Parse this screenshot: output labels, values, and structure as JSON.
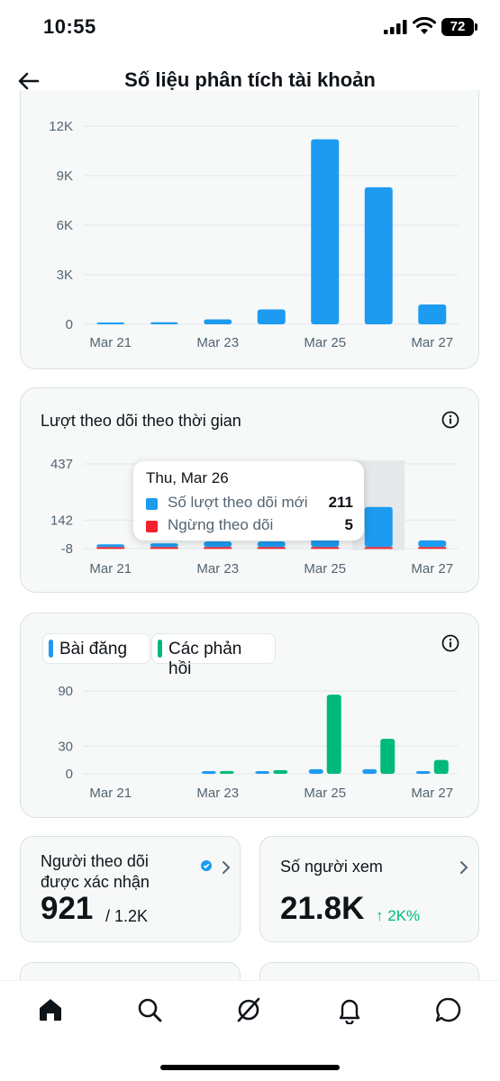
{
  "status_bar": {
    "time": "10:55",
    "battery": "72"
  },
  "header": {
    "title": "Số liệu phân tích tài khoản",
    "back_icon": "arrow-left-icon"
  },
  "colors": {
    "blue": "#1d9bf0",
    "red": "#f4212e",
    "green": "#00ba7c",
    "grid": "#e1e8ed",
    "muted": "#536471"
  },
  "chart_data": [
    {
      "type": "bar",
      "title": "",
      "categories": [
        "Mar 21",
        "Mar 22",
        "Mar 23",
        "Mar 24",
        "Mar 25",
        "Mar 26",
        "Mar 27"
      ],
      "x_tick_labels": [
        "Mar 21",
        "Mar 23",
        "Mar 25",
        "Mar 27"
      ],
      "y_tick_labels": [
        "12K",
        "9K",
        "6K",
        "3K",
        "0"
      ],
      "y_ticks": [
        12000,
        9000,
        6000,
        3000,
        0
      ],
      "ylim": [
        0,
        12000
      ],
      "values": [
        80,
        120,
        300,
        900,
        11200,
        8300,
        1200
      ],
      "grid": true
    },
    {
      "type": "bar",
      "title": "Lượt theo dõi theo thời gian",
      "categories": [
        "Mar 21",
        "Mar 22",
        "Mar 23",
        "Mar 24",
        "Mar 25",
        "Mar 26",
        "Mar 27"
      ],
      "x_tick_labels": [
        "Mar 21",
        "Mar 23",
        "Mar 25",
        "Mar 27"
      ],
      "y_tick_labels": [
        "437",
        "142",
        "-8"
      ],
      "y_ticks": [
        437,
        142,
        -8
      ],
      "ylim": [
        -8,
        437
      ],
      "series": [
        {
          "name": "Số lượt theo dõi mới",
          "values": [
            2,
            20,
            30,
            30,
            437,
            211,
            35
          ]
        },
        {
          "name": "Ngừng theo dõi",
          "values": [
            6,
            4,
            4,
            4,
            5,
            5,
            3
          ]
        }
      ],
      "grid": true,
      "tooltip": {
        "date": "Thu, Mar 26",
        "rows": [
          {
            "label": "Số lượt theo dõi mới",
            "value": "211"
          },
          {
            "label": "Ngừng theo dõi",
            "value": "5"
          }
        ]
      }
    },
    {
      "type": "bar",
      "title": "",
      "categories": [
        "Mar 21",
        "Mar 22",
        "Mar 23",
        "Mar 24",
        "Mar 25",
        "Mar 26",
        "Mar 27"
      ],
      "x_tick_labels": [
        "Mar 21",
        "Mar 23",
        "Mar 25",
        "Mar 27"
      ],
      "y_tick_labels": [
        "90",
        "30",
        "0"
      ],
      "y_ticks": [
        90,
        30,
        0
      ],
      "ylim": [
        0,
        90
      ],
      "series": [
        {
          "name": "Bài đăng",
          "values": [
            0,
            0,
            1,
            1,
            5,
            5,
            2
          ]
        },
        {
          "name": "Các phản hồi",
          "values": [
            0,
            0,
            3,
            4,
            86,
            38,
            15
          ]
        }
      ],
      "grid": true,
      "legend": "top-left"
    }
  ],
  "stats": {
    "verified": {
      "label_line1": "Người theo dõi",
      "label_line2": "được xác nhận",
      "value": "921",
      "sub": "/ 1.2K"
    },
    "viewers": {
      "label": "Số người xem",
      "value": "21.8K",
      "change": "2K%"
    }
  },
  "nav": [
    "home-icon",
    "search-icon",
    "grok-icon",
    "bell-icon",
    "messages-icon"
  ]
}
